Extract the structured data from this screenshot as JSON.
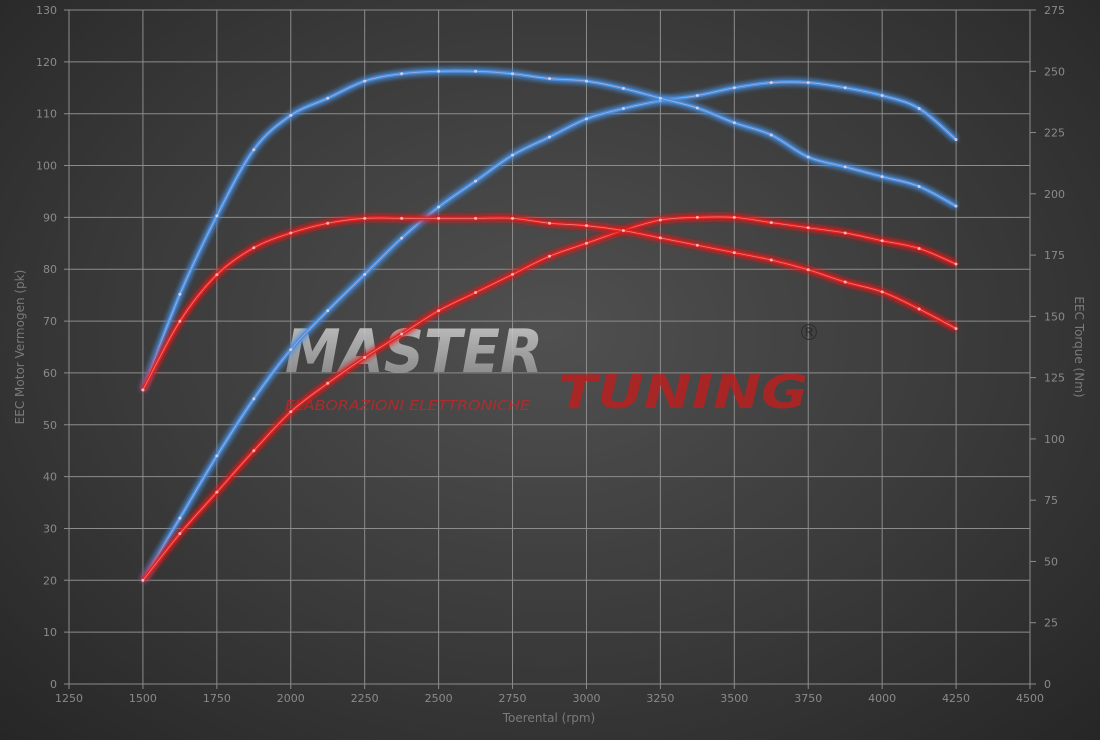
{
  "chart_data": {
    "type": "line",
    "title": "",
    "xlabel": "Toerental (rpm)",
    "ylabel_left": "EEC Motor Vermogen (pk)",
    "ylabel_right": "EEC Torque (Nm)",
    "xlim": [
      1250,
      4500
    ],
    "ylim_left": [
      0,
      130
    ],
    "ylim_right": [
      0,
      275
    ],
    "x_ticks": [
      1250,
      1500,
      1750,
      2000,
      2250,
      2500,
      2750,
      3000,
      3250,
      3500,
      3750,
      4000,
      4250,
      4500
    ],
    "y_ticks_left": [
      0,
      10,
      20,
      30,
      40,
      50,
      60,
      70,
      80,
      90,
      100,
      110,
      120,
      130
    ],
    "y_ticks_right": [
      0,
      25,
      50,
      75,
      100,
      125,
      150,
      175,
      200,
      225,
      250,
      275
    ],
    "grid": true,
    "x": [
      1500,
      1625,
      1750,
      1875,
      2000,
      2125,
      2250,
      2375,
      2500,
      2625,
      2750,
      2875,
      3000,
      3125,
      3250,
      3375,
      3500,
      3625,
      3750,
      3875,
      4000,
      4125,
      4250
    ],
    "series": [
      {
        "axis": "left",
        "color": "#4a8fe0",
        "values": [
          20,
          32,
          44,
          55,
          64.5,
          72,
          79,
          86,
          92,
          97,
          102,
          105.5,
          109,
          111,
          112.5,
          113.5,
          115,
          116,
          116,
          115,
          113.5,
          111,
          105
        ]
      },
      {
        "axis": "right",
        "color": "#4a8fe0",
        "values": [
          120,
          159,
          191,
          218,
          232,
          239,
          246,
          249,
          250,
          250,
          249,
          247,
          246,
          243,
          239,
          235,
          229,
          224,
          215,
          211,
          207,
          203,
          195
        ]
      },
      {
        "axis": "left",
        "color": "#e02020",
        "values": [
          20,
          29,
          37,
          45,
          52.5,
          58,
          63,
          67.5,
          72,
          75.5,
          79,
          82.5,
          85,
          87.5,
          89.5,
          90,
          90,
          89,
          88,
          87,
          85.5,
          84,
          81
        ]
      },
      {
        "axis": "right",
        "color": "#e02020",
        "values": [
          120,
          148,
          167,
          178,
          184,
          188,
          190,
          190,
          190,
          190,
          190,
          188,
          187,
          185,
          182,
          179,
          176,
          173,
          169,
          164,
          160,
          153,
          145
        ]
      }
    ]
  },
  "watermark": {
    "brand_top": "MASTER",
    "brand_bottom": "TUNING",
    "tagline": "ELABORAZIONI ELETTRONICHE",
    "registered": "®"
  }
}
